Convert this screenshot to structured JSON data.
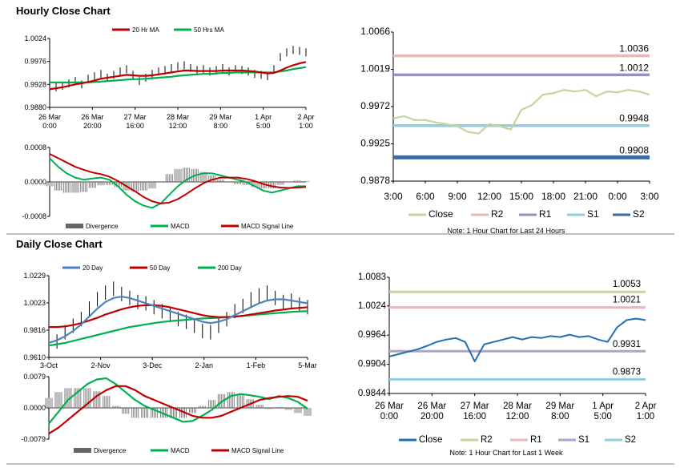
{
  "colors": {
    "ma_short": "#c00000",
    "ma_long": "#00b050",
    "day20": "#4f81bd",
    "close_hourly": "#c3d69b",
    "close_daily": "#1f6fb4",
    "r2_hourly": "#e6b9b8",
    "r1_hourly": "#9e8fc0",
    "s1_hourly": "#93cddd",
    "s2_hourly": "#3a6ea5",
    "r2_daily": "#c3d69b",
    "r1_daily": "#e6b9b8",
    "s1_daily": "#b3a2c7",
    "s2_daily": "#93cddd",
    "divergence": "#808080"
  },
  "sections": {
    "hourly_title": "Hourly Close Chart",
    "daily_title": "Daily Close Chart"
  },
  "chart_data": [
    {
      "id": "hourly_price",
      "type": "line",
      "legend": [
        "20 Hr MA",
        "50 Hrs MA"
      ],
      "y_ticks": [
        "1.0024",
        "0.9976",
        "0.9928",
        "0.9880"
      ],
      "ylim": [
        0.988,
        1.0024
      ],
      "x_ticks": [
        [
          "26 Mar",
          "0:00"
        ],
        [
          "26 Mar",
          "20:00"
        ],
        [
          "27 Mar",
          "16:00"
        ],
        [
          "28 Mar",
          "12:00"
        ],
        [
          "29 Mar",
          "8:00"
        ],
        [
          "1 Apr",
          "5:00"
        ],
        [
          "2 Apr",
          "1:00"
        ]
      ],
      "close": [
        0.9915,
        0.9922,
        0.9925,
        0.993,
        0.9935,
        0.9928,
        0.994,
        0.9945,
        0.995,
        0.9942,
        0.9948,
        0.9955,
        0.996,
        0.9948,
        0.9935,
        0.9942,
        0.995,
        0.9955,
        0.9958,
        0.9962,
        0.9966,
        0.9968,
        0.9962,
        0.9958,
        0.996,
        0.9955,
        0.9958,
        0.9962,
        0.9955,
        0.996,
        0.9958,
        0.9955,
        0.995,
        0.9948,
        0.9945,
        0.996,
        0.9985,
        0.9995,
        1.0,
        0.9998,
        0.9995
      ],
      "ma20": [
        0.9918,
        0.992,
        0.9922,
        0.9925,
        0.9928,
        0.993,
        0.9933,
        0.9936,
        0.994,
        0.9942,
        0.9944,
        0.9946,
        0.9948,
        0.9947,
        0.9946,
        0.9946,
        0.9947,
        0.9949,
        0.9951,
        0.9953,
        0.9955,
        0.9957,
        0.9957,
        0.9956,
        0.9956,
        0.9956,
        0.9956,
        0.9957,
        0.9957,
        0.9957,
        0.9957,
        0.9956,
        0.9955,
        0.9953,
        0.9951,
        0.9952,
        0.9957,
        0.9963,
        0.9968,
        0.9972,
        0.9975
      ],
      "ma50": [
        0.9932,
        0.9932,
        0.9932,
        0.9932,
        0.9932,
        0.9932,
        0.9932,
        0.9933,
        0.9934,
        0.9935,
        0.9936,
        0.9937,
        0.9938,
        0.9939,
        0.9939,
        0.994,
        0.9941,
        0.9942,
        0.9943,
        0.9944,
        0.9946,
        0.9947,
        0.9948,
        0.9949,
        0.995,
        0.995,
        0.9951,
        0.9952,
        0.9952,
        0.9953,
        0.9953,
        0.9953,
        0.9953,
        0.9953,
        0.9953,
        0.9953,
        0.9955,
        0.9957,
        0.996,
        0.9962,
        0.9964
      ]
    },
    {
      "id": "hourly_macd",
      "type": "line",
      "legend": [
        "Divergence",
        "MACD",
        "MACD Signal Line"
      ],
      "y_ticks": [
        "0.0008",
        "0.0000",
        "-0.0008"
      ],
      "ylim": [
        -0.0008,
        0.0008
      ],
      "macd": [
        0.00055,
        0.00035,
        0.0002,
        0.0001,
        5e-05,
        8e-05,
        0.0001,
        5e-05,
        -0.0001,
        -0.0003,
        -0.00045,
        -0.00055,
        -0.0006,
        -0.0005,
        -0.0003,
        -0.0001,
        5e-05,
        0.00015,
        0.0002,
        0.0002,
        0.00015,
        0.0001,
        5e-05,
        0.0,
        -0.0001,
        -0.0002,
        -0.00025,
        -0.0002,
        -0.00015,
        -0.0001,
        -0.0001
      ],
      "signal": [
        0.00065,
        0.00055,
        0.00045,
        0.00035,
        0.00028,
        0.00022,
        0.00018,
        0.00012,
        2e-05,
        -0.0001,
        -0.00022,
        -0.00035,
        -0.00045,
        -0.0005,
        -0.00048,
        -0.0004,
        -0.00028,
        -0.00015,
        -3e-05,
        5e-05,
        0.0001,
        0.0001,
        0.0001,
        7e-05,
        2e-05,
        -5e-05,
        -0.0001,
        -0.00013,
        -0.00014,
        -0.00013,
        -0.00012
      ],
      "divergence": [
        -0.0001,
        -0.0002,
        -0.00025,
        -0.00025,
        -0.00023,
        -0.00014,
        -8e-05,
        -7e-05,
        -0.00012,
        -0.0002,
        -0.00023,
        -0.0002,
        -0.00015,
        0.0,
        0.00018,
        0.0003,
        0.00033,
        0.0003,
        0.00023,
        0.00015,
        5e-05,
        0.0,
        -5e-05,
        -7e-05,
        -0.00012,
        -0.00015,
        -0.00015,
        -7e-05,
        -1e-05,
        3e-05,
        2e-05
      ]
    },
    {
      "id": "hourly_levels",
      "type": "line",
      "ylim": [
        0.9878,
        1.0066
      ],
      "y_ticks": [
        "1.0066",
        "1.0019",
        "0.9972",
        "0.9925",
        "0.9878"
      ],
      "x_ticks": [
        "3:00",
        "6:00",
        "9:00",
        "12:00",
        "15:00",
        "18:00",
        "21:00",
        "0:00",
        "3:00"
      ],
      "close": [
        0.9957,
        0.996,
        0.9955,
        0.9955,
        0.9952,
        0.995,
        0.9947,
        0.994,
        0.9938,
        0.995,
        0.9947,
        0.9943,
        0.9968,
        0.9974,
        0.9987,
        0.9989,
        0.9993,
        0.9991,
        0.9993,
        0.9985,
        0.9991,
        0.999,
        0.9993,
        0.9991,
        0.9987
      ],
      "levels": [
        {
          "name": "R2",
          "value": 1.0036,
          "label": "1.0036"
        },
        {
          "name": "R1",
          "value": 1.0012,
          "label": "1.0012"
        },
        {
          "name": "S1",
          "value": 0.9948,
          "label": "0.9948"
        },
        {
          "name": "S2",
          "value": 0.9908,
          "label": "0.9908"
        }
      ],
      "legend": [
        "Close",
        "R2",
        "R1",
        "S1",
        "S2"
      ],
      "note": "Note: 1 Hour Chart for Last 24 Hours"
    },
    {
      "id": "daily_price",
      "type": "line",
      "legend": [
        "20 Day",
        "50 Day",
        "200 Day"
      ],
      "y_ticks": [
        "1.0229",
        "1.0023",
        "0.9816",
        "0.9610"
      ],
      "ylim": [
        0.961,
        1.0229
      ],
      "x_ticks": [
        "3-Oct",
        "2-Nov",
        "3-Dec",
        "2-Jan",
        "1-Feb",
        "5-Mar"
      ],
      "close": [
        0.97,
        0.973,
        0.98,
        0.985,
        0.99,
        0.998,
        1.005,
        1.01,
        1.013,
        1.009,
        1.006,
        1.003,
        1.002,
        0.999,
        0.996,
        0.993,
        0.99,
        0.988,
        0.985,
        0.981,
        0.98,
        0.985,
        0.99,
        0.996,
        1.0,
        1.005,
        1.008,
        1.01,
        1.006,
        1.003,
        1.004,
        1.001,
        0.999
      ],
      "ma20": [
        0.972,
        0.974,
        0.977,
        0.981,
        0.986,
        0.992,
        0.998,
        1.003,
        1.006,
        1.007,
        1.006,
        1.004,
        1.002,
        1.0,
        0.998,
        0.996,
        0.994,
        0.992,
        0.99,
        0.988,
        0.987,
        0.988,
        0.99,
        0.993,
        0.996,
        0.999,
        1.002,
        1.004,
        1.005,
        1.005,
        1.004,
        1.003,
        1.002
      ],
      "ma50": [
        0.984,
        0.984,
        0.9845,
        0.9855,
        0.987,
        0.989,
        0.991,
        0.9935,
        0.9955,
        0.9975,
        0.999,
        1.0,
        1.0005,
        1.0005,
        1.0,
        0.999,
        0.9975,
        0.996,
        0.9945,
        0.993,
        0.992,
        0.9915,
        0.9915,
        0.9918,
        0.9925,
        0.9935,
        0.9945,
        0.9955,
        0.9965,
        0.9972,
        0.998,
        0.9985,
        0.999
      ],
      "ma200": [
        0.97,
        0.971,
        0.972,
        0.9735,
        0.975,
        0.9765,
        0.978,
        0.9795,
        0.981,
        0.9825,
        0.984,
        0.985,
        0.986,
        0.987,
        0.9878,
        0.9885,
        0.989,
        0.9895,
        0.99,
        0.9905,
        0.9908,
        0.991,
        0.9915,
        0.992,
        0.9925,
        0.993,
        0.9935,
        0.994,
        0.9945,
        0.995,
        0.9955,
        0.9958,
        0.996
      ]
    },
    {
      "id": "daily_macd",
      "type": "line",
      "legend": [
        "Divergence",
        "MACD",
        "MACD Signal Line"
      ],
      "y_ticks": [
        "0.0079",
        "0.0000",
        "-0.0079"
      ],
      "ylim": [
        -0.0079,
        0.0079
      ],
      "macd": [
        -0.004,
        -0.001,
        0.002,
        0.004,
        0.006,
        0.0072,
        0.0075,
        0.006,
        0.004,
        0.002,
        0.0005,
        -0.0005,
        -0.0015,
        -0.0025,
        -0.0035,
        -0.0033,
        -0.002,
        -0.0005,
        0.0015,
        0.003,
        0.0035,
        0.0032,
        0.0028,
        0.0022,
        0.003,
        0.0025,
        0.0015,
        -0.0002
      ],
      "signal": [
        -0.0065,
        -0.005,
        -0.003,
        -0.001,
        0.001,
        0.003,
        0.0045,
        0.0055,
        0.0055,
        0.0045,
        0.003,
        0.002,
        0.001,
        0.0,
        -0.001,
        -0.002,
        -0.0025,
        -0.0025,
        -0.002,
        -0.001,
        0.0,
        0.001,
        0.002,
        0.0025,
        0.0028,
        0.003,
        0.0028,
        0.0018
      ],
      "divergence": [
        0.0025,
        0.004,
        0.005,
        0.005,
        0.005,
        0.0042,
        0.003,
        0.0005,
        -0.0015,
        -0.0025,
        -0.0025,
        -0.0025,
        -0.0025,
        -0.0025,
        -0.0025,
        -0.0013,
        0.0005,
        0.002,
        0.0035,
        0.004,
        0.0035,
        0.0022,
        0.0008,
        -0.0003,
        0.0002,
        -0.0005,
        -0.0013,
        -0.002
      ]
    },
    {
      "id": "daily_levels",
      "type": "line",
      "ylim": [
        0.9844,
        1.0083
      ],
      "y_ticks": [
        "1.0083",
        "1.0024",
        "0.9964",
        "0.9904",
        "0.9844"
      ],
      "x_ticks": [
        [
          "26 Mar",
          "0:00"
        ],
        [
          "26 Mar",
          "20:00"
        ],
        [
          "27 Mar",
          "16:00"
        ],
        [
          "28 Mar",
          "12:00"
        ],
        [
          "29 Mar",
          "8:00"
        ],
        [
          "1 Apr",
          "5:00"
        ],
        [
          "2 Apr",
          "1:00"
        ]
      ],
      "close": [
        0.992,
        0.9925,
        0.993,
        0.9935,
        0.9942,
        0.995,
        0.9955,
        0.9958,
        0.995,
        0.991,
        0.9945,
        0.995,
        0.9955,
        0.996,
        0.9955,
        0.996,
        0.9958,
        0.9962,
        0.996,
        0.9965,
        0.996,
        0.9962,
        0.9955,
        0.995,
        0.998,
        0.9995,
        0.9998,
        0.9995
      ],
      "levels": [
        {
          "name": "R2",
          "value": 1.0053,
          "label": "1.0053"
        },
        {
          "name": "R1",
          "value": 1.0021,
          "label": "1.0021"
        },
        {
          "name": "S1",
          "value": 0.9931,
          "label": "0.9931"
        },
        {
          "name": "S2",
          "value": 0.9873,
          "label": "0.9873"
        }
      ],
      "legend": [
        "Close",
        "R2",
        "R1",
        "S1",
        "S2"
      ],
      "note": "Note: 1 Hour Chart for Last 1 Week"
    }
  ]
}
